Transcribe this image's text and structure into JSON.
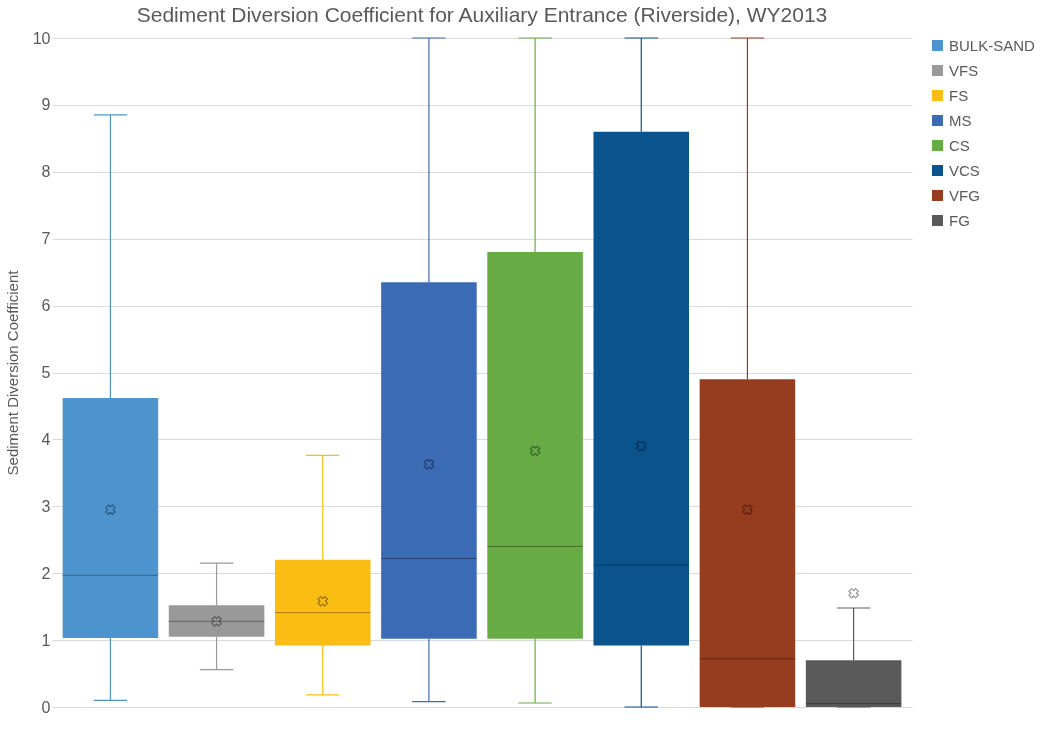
{
  "chart_data": {
    "type": "box",
    "title": "Sediment Diversion Coefficient for Auxiliary Entrance (Riverside), WY2013",
    "ylabel": "Sediment Diversion Coefficient",
    "categories": [
      null
    ],
    "series": [
      {
        "name": "BULK-SAND",
        "color": "#4e95d0",
        "boxes": [
          {
            "low": 0.1,
            "q1": 1.03,
            "median": 1.97,
            "q3": 4.62,
            "high": 8.85,
            "mean": 2.95
          }
        ]
      },
      {
        "name": "VFS",
        "color": "#999999",
        "boxes": [
          {
            "low": 0.56,
            "q1": 1.05,
            "median": 1.28,
            "q3": 1.52,
            "high": 2.15,
            "mean": 1.28
          }
        ]
      },
      {
        "name": "FS",
        "color": "#fbbd13",
        "boxes": [
          {
            "low": 0.18,
            "q1": 0.92,
            "median": 1.41,
            "q3": 2.2,
            "high": 3.76,
            "mean": 1.58
          }
        ]
      },
      {
        "name": "MS",
        "color": "#3c6bb5",
        "boxes": [
          {
            "low": 0.08,
            "q1": 1.02,
            "median": 2.22,
            "q3": 6.35,
            "high": 10,
            "mean": 3.63
          }
        ]
      },
      {
        "name": "CS",
        "color": "#67ab45",
        "boxes": [
          {
            "low": 0.06,
            "q1": 1.02,
            "median": 2.4,
            "q3": 6.8,
            "high": 10,
            "mean": 3.83
          }
        ]
      },
      {
        "name": "VCS",
        "color": "#0a538c",
        "boxes": [
          {
            "low": 0,
            "q1": 0.92,
            "median": 2.12,
            "q3": 8.6,
            "high": 10,
            "mean": 3.9
          }
        ]
      },
      {
        "name": "VFG",
        "color": "#963d20",
        "boxes": [
          {
            "low": 0,
            "q1": 0,
            "median": 0.72,
            "q3": 4.9,
            "high": 10,
            "mean": 2.95
          }
        ]
      },
      {
        "name": "FG",
        "color": "#5a5a5a",
        "boxes": [
          {
            "low": 0,
            "q1": 0,
            "median": 0.05,
            "q3": 0.7,
            "high": 1.48,
            "mean": 1.7
          }
        ]
      }
    ],
    "ylim": [
      0,
      10
    ],
    "yticks": [
      0,
      1,
      2,
      3,
      4,
      5,
      6,
      7,
      8,
      9,
      10
    ],
    "grid": "y",
    "legend": "right",
    "tick_labels": "y"
  }
}
